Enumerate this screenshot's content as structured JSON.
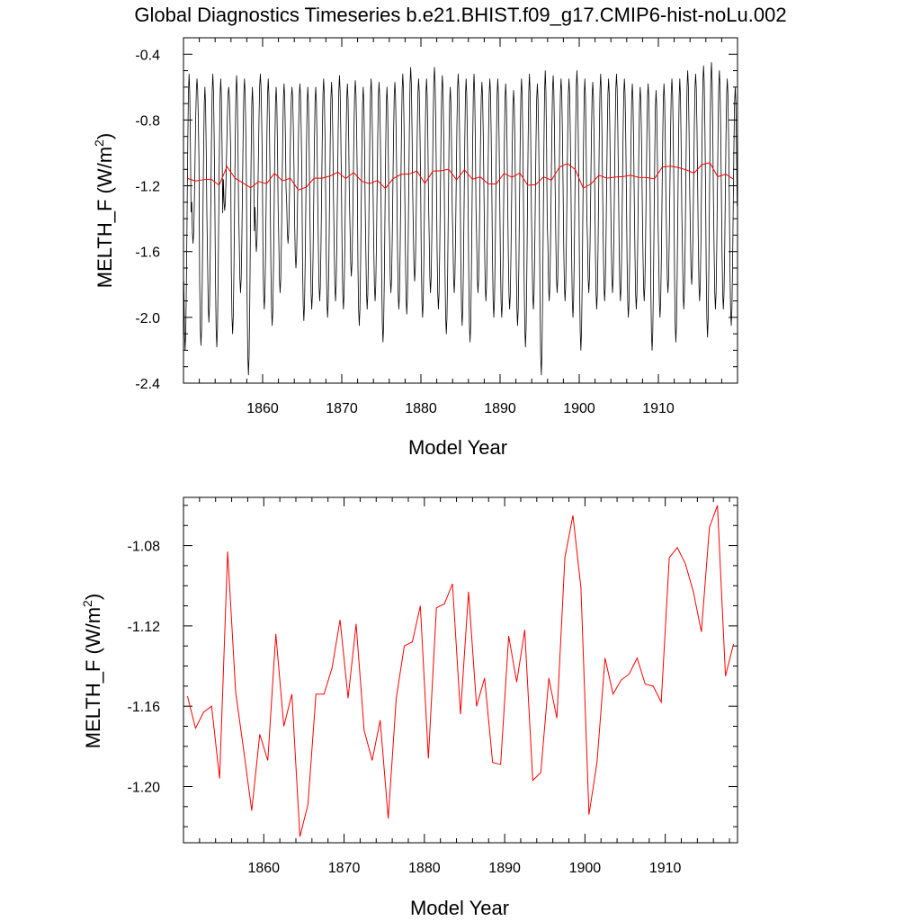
{
  "figure_title": "Global Diagnostics Timeseries b.e21.BHIST.f09_g17.CMIP6-hist-noLu.002",
  "chart_data": [
    {
      "type": "line",
      "title": "",
      "xlabel": "Model Year",
      "ylabel": "MELTH_F (W/m",
      "ylabel_superscript": "2",
      "ylabel_close": ")",
      "xlim": [
        1850,
        1920
      ],
      "ylim": [
        -2.4,
        -0.3
      ],
      "x_ticks": [
        1860,
        1870,
        1880,
        1890,
        1900,
        1910
      ],
      "x_tick_labels": [
        "1860",
        "1870",
        "1880",
        "1890",
        "1900",
        "1910"
      ],
      "y_ticks": [
        -0.4,
        -0.8,
        -1.2,
        -1.6,
        -2.0,
        -2.4
      ],
      "y_tick_labels": [
        "-0.4",
        "-0.8",
        "-1.2",
        "-1.6",
        "-2.0",
        "-2.4"
      ],
      "grid": false,
      "monthly_series": {
        "color": "#000000",
        "start_year": 1850,
        "months_per_year": 12,
        "annual_max": [
          -0.52,
          -0.55,
          -0.6,
          -0.52,
          -0.55,
          -0.6,
          -0.53,
          -0.55,
          -0.6,
          -0.52,
          -0.55,
          -0.6,
          -0.58,
          -0.6,
          -0.58,
          -0.6,
          -0.6,
          -0.55,
          -0.57,
          -0.53,
          -0.58,
          -0.56,
          -0.6,
          -0.55,
          -0.57,
          -0.6,
          -0.57,
          -0.52,
          -0.48,
          -0.55,
          -0.55,
          -0.48,
          -0.53,
          -0.6,
          -0.52,
          -0.55,
          -0.52,
          -0.57,
          -0.55,
          -0.55,
          -0.58,
          -0.62,
          -0.55,
          -0.52,
          -0.58,
          -0.5,
          -0.53,
          -0.55,
          -0.55,
          -0.5,
          -0.55,
          -0.57,
          -0.52,
          -0.55,
          -0.52,
          -0.55,
          -0.58,
          -0.6,
          -0.58,
          -0.62,
          -0.58,
          -0.55,
          -0.55,
          -0.5,
          -0.52,
          -0.47,
          -0.45,
          -0.5,
          -0.55,
          -0.6
        ],
        "annual_min": [
          -2.2,
          -1.55,
          -2.17,
          -2.03,
          -2.18,
          -1.35,
          -2.1,
          -1.85,
          -2.35,
          -1.6,
          -1.95,
          -2.05,
          -1.85,
          -1.55,
          -1.7,
          -2.02,
          -1.95,
          -1.9,
          -2.0,
          -1.9,
          -1.95,
          -1.75,
          -2.05,
          -1.95,
          -1.9,
          -2.15,
          -1.85,
          -1.95,
          -1.98,
          -1.78,
          -2.0,
          -1.85,
          -1.95,
          -2.1,
          -1.85,
          -2.05,
          -2.15,
          -1.85,
          -1.9,
          -2.0,
          -2.0,
          -1.95,
          -2.05,
          -2.18,
          -1.95,
          -2.35,
          -1.9,
          -1.85,
          -1.9,
          -2.0,
          -2.2,
          -1.85,
          -1.95,
          -1.9,
          -1.85,
          -1.9,
          -2.0,
          -1.95,
          -1.9,
          -2.2,
          -2.0,
          -1.85,
          -2.15,
          -1.95,
          -1.8,
          -1.9,
          -2.12,
          -1.95,
          -1.95,
          -2.05
        ]
      },
      "annual_series": {
        "color": "#ff0000",
        "x": [
          1850.5,
          1851.5,
          1852.5,
          1853.5,
          1854.5,
          1855.5,
          1856.5,
          1857.5,
          1858.5,
          1859.5,
          1860.5,
          1861.5,
          1862.5,
          1863.5,
          1864.5,
          1865.5,
          1866.5,
          1867.5,
          1868.5,
          1869.5,
          1870.5,
          1871.5,
          1872.5,
          1873.5,
          1874.5,
          1875.5,
          1876.5,
          1877.5,
          1878.5,
          1879.5,
          1880.5,
          1881.5,
          1882.5,
          1883.5,
          1884.5,
          1885.5,
          1886.5,
          1887.5,
          1888.5,
          1889.5,
          1890.5,
          1891.5,
          1892.5,
          1893.5,
          1894.5,
          1895.5,
          1896.5,
          1897.5,
          1898.5,
          1899.5,
          1900.5,
          1901.5,
          1902.5,
          1903.5,
          1904.5,
          1905.5,
          1906.5,
          1907.5,
          1908.5,
          1909.5,
          1910.5,
          1911.5,
          1912.5,
          1913.5,
          1914.5,
          1915.5,
          1916.5,
          1917.5,
          1918.5,
          1919.5
        ],
        "values": [
          -1.155,
          -1.171,
          -1.163,
          -1.16,
          -1.196,
          -1.083,
          -1.153,
          -1.182,
          -1.212,
          -1.174,
          -1.187,
          -1.124,
          -1.17,
          -1.154,
          -1.225,
          -1.209,
          -1.154,
          -1.154,
          -1.141,
          -1.117,
          -1.156,
          -1.119,
          -1.172,
          -1.187,
          -1.167,
          -1.216,
          -1.156,
          -1.13,
          -1.128,
          -1.11,
          -1.186,
          -1.111,
          -1.109,
          -1.099,
          -1.164,
          -1.103,
          -1.16,
          -1.146,
          -1.188,
          -1.189,
          -1.125,
          -1.148,
          -1.122,
          -1.197,
          -1.193,
          -1.146,
          -1.166,
          -1.086,
          -1.065,
          -1.101,
          -1.214,
          -1.188,
          -1.136,
          -1.154,
          -1.147,
          -1.144,
          -1.136,
          -1.149,
          -1.15,
          -1.158,
          -1.086,
          -1.081,
          -1.089,
          -1.103,
          -1.123,
          -1.071,
          -1.06,
          -1.145,
          -1.129,
          -1.16
        ]
      }
    },
    {
      "type": "line",
      "title": "",
      "xlabel": "Model Year",
      "ylabel": "MELTH_F (W/m",
      "ylabel_superscript": "2",
      "ylabel_close": ")",
      "xlim": [
        1850,
        1919
      ],
      "ylim": [
        -1.228,
        -1.056
      ],
      "x_ticks": [
        1860,
        1870,
        1880,
        1890,
        1900,
        1910
      ],
      "x_tick_labels": [
        "1860",
        "1870",
        "1880",
        "1890",
        "1900",
        "1910"
      ],
      "y_ticks": [
        -1.08,
        -1.12,
        -1.16,
        -1.2
      ],
      "y_tick_labels": [
        "-1.08",
        "-1.12",
        "-1.16",
        "-1.20"
      ],
      "grid": false,
      "series": [
        {
          "color": "#ff0000",
          "x": [
            1850.5,
            1851.5,
            1852.5,
            1853.5,
            1854.5,
            1855.5,
            1856.5,
            1857.5,
            1858.5,
            1859.5,
            1860.5,
            1861.5,
            1862.5,
            1863.5,
            1864.5,
            1865.5,
            1866.5,
            1867.5,
            1868.5,
            1869.5,
            1870.5,
            1871.5,
            1872.5,
            1873.5,
            1874.5,
            1875.5,
            1876.5,
            1877.5,
            1878.5,
            1879.5,
            1880.5,
            1881.5,
            1882.5,
            1883.5,
            1884.5,
            1885.5,
            1886.5,
            1887.5,
            1888.5,
            1889.5,
            1890.5,
            1891.5,
            1892.5,
            1893.5,
            1894.5,
            1895.5,
            1896.5,
            1897.5,
            1898.5,
            1899.5,
            1900.5,
            1901.5,
            1902.5,
            1903.5,
            1904.5,
            1905.5,
            1906.5,
            1907.5,
            1908.5,
            1909.5,
            1910.5,
            1911.5,
            1912.5,
            1913.5,
            1914.5,
            1915.5,
            1916.5,
            1917.5,
            1918.5
          ],
          "values": [
            -1.155,
            -1.171,
            -1.163,
            -1.16,
            -1.196,
            -1.083,
            -1.153,
            -1.182,
            -1.212,
            -1.174,
            -1.187,
            -1.124,
            -1.17,
            -1.154,
            -1.225,
            -1.209,
            -1.154,
            -1.154,
            -1.141,
            -1.117,
            -1.156,
            -1.119,
            -1.172,
            -1.187,
            -1.167,
            -1.216,
            -1.156,
            -1.13,
            -1.128,
            -1.11,
            -1.186,
            -1.111,
            -1.109,
            -1.099,
            -1.164,
            -1.103,
            -1.16,
            -1.146,
            -1.188,
            -1.189,
            -1.125,
            -1.148,
            -1.122,
            -1.197,
            -1.193,
            -1.146,
            -1.166,
            -1.086,
            -1.065,
            -1.101,
            -1.214,
            -1.188,
            -1.136,
            -1.154,
            -1.147,
            -1.144,
            -1.136,
            -1.149,
            -1.15,
            -1.158,
            -1.086,
            -1.081,
            -1.089,
            -1.103,
            -1.123,
            -1.071,
            -1.06,
            -1.145,
            -1.129
          ]
        }
      ]
    }
  ]
}
